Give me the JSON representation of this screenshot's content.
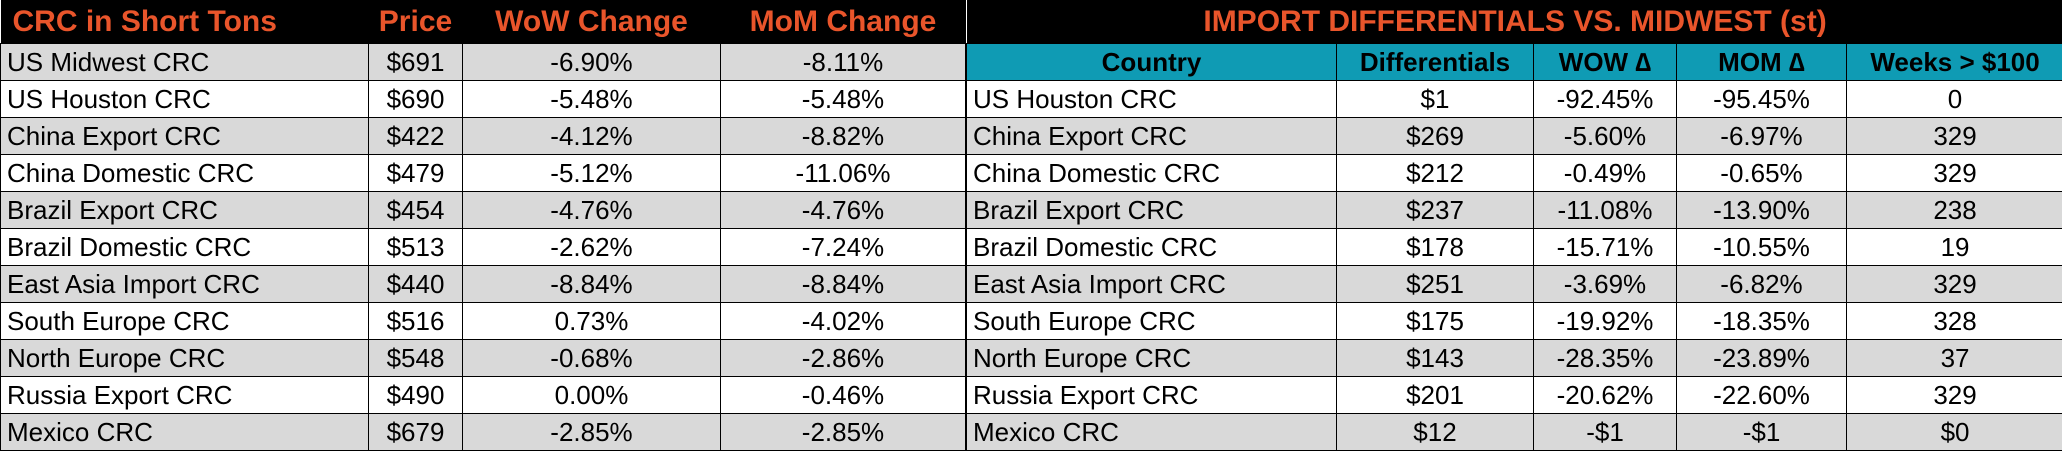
{
  "left_table": {
    "headers": [
      "CRC in Short Tons",
      "Price",
      "WoW Change",
      "MoM Change"
    ],
    "rows": [
      [
        "US Midwest CRC",
        "$691",
        "-6.90%",
        "-8.11%"
      ],
      [
        "US Houston CRC",
        "$690",
        "-5.48%",
        "-5.48%"
      ],
      [
        "China Export CRC",
        "$422",
        "-4.12%",
        "-8.82%"
      ],
      [
        "China Domestic CRC",
        "$479",
        "-5.12%",
        "-11.06%"
      ],
      [
        "Brazil Export CRC",
        "$454",
        "-4.76%",
        "-4.76%"
      ],
      [
        "Brazil Domestic CRC",
        "$513",
        "-2.62%",
        "-7.24%"
      ],
      [
        "East Asia Import CRC",
        "$440",
        "-8.84%",
        "-8.84%"
      ],
      [
        "South Europe CRC",
        "$516",
        "0.73%",
        "-4.02%"
      ],
      [
        "North Europe CRC",
        "$548",
        "-0.68%",
        "-2.86%"
      ],
      [
        "Russia Export CRC",
        "$490",
        "0.00%",
        "-0.46%"
      ],
      [
        "Mexico CRC",
        "$679",
        "-2.85%",
        "-2.85%"
      ]
    ]
  },
  "right_table": {
    "title": "IMPORT DIFFERENTIALS VS. MIDWEST (st)",
    "headers": [
      "Country",
      "Differentials",
      "WOW ∆",
      "MOM ∆",
      "Weeks > $100"
    ],
    "rows": [
      [
        "US Houston CRC",
        "$1",
        "-92.45%",
        "-95.45%",
        "0"
      ],
      [
        "China Export CRC",
        "$269",
        "-5.60%",
        "-6.97%",
        "329"
      ],
      [
        "China Domestic CRC",
        "$212",
        "-0.49%",
        "-0.65%",
        "329"
      ],
      [
        "Brazil Export CRC",
        "$237",
        "-11.08%",
        "-13.90%",
        "238"
      ],
      [
        "Brazil Domestic CRC",
        "$178",
        "-15.71%",
        "-10.55%",
        "19"
      ],
      [
        "East Asia Import CRC",
        "$251",
        "-3.69%",
        "-6.82%",
        "329"
      ],
      [
        "South Europe CRC",
        "$175",
        "-19.92%",
        "-18.35%",
        "328"
      ],
      [
        "North Europe CRC",
        "$143",
        "-28.35%",
        "-23.89%",
        "37"
      ],
      [
        "Russia Export CRC",
        "$201",
        "-20.62%",
        "-22.60%",
        "329"
      ],
      [
        "Mexico CRC",
        "$12",
        "-$1",
        "-$1",
        "$0"
      ]
    ]
  },
  "colors": {
    "header_bg": "#000000",
    "header_text": "#e9552b",
    "subheader_bg": "#0f9bb4",
    "row_shade": "#d9d9d9"
  }
}
